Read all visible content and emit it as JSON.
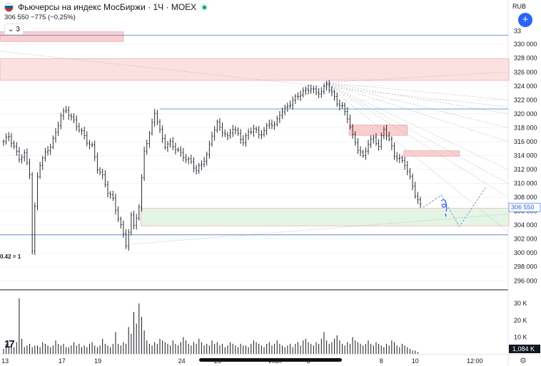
{
  "header": {
    "title": "Фьючерсы на индекс МосБиржи · 1Ч · MOEX",
    "flag_colors": [
      "#ffffff",
      "#1c57a5",
      "#d52b1e"
    ],
    "live_color": "#089981"
  },
  "quote": {
    "last": "306 550",
    "change": "−775 (−0,25%)"
  },
  "collapse": {
    "count": "3",
    "icon": "chevron-down-icon"
  },
  "toolbar": {
    "currency": "RUB",
    "add_icon": "plus-icon",
    "add_label": "+"
  },
  "fib_label": "0.42 = 1",
  "footer": {
    "settings_icon": "gear-icon",
    "logo_text": "17",
    "logo_icon": "tradingview-logo-icon"
  },
  "chart_data": {
    "type": "candlestick",
    "price_axis": {
      "ticks": [
        "330 000",
        "328 000",
        "326 000",
        "324 000",
        "322 000",
        "320 000",
        "318 000",
        "316 000",
        "314 000",
        "312 000",
        "310 000",
        "308 000",
        "306 000",
        "304 000",
        "302 000",
        "300 000",
        "298 000",
        "296 000"
      ],
      "values": [
        330000,
        328000,
        326000,
        324000,
        322000,
        320000,
        318000,
        316000,
        314000,
        312000,
        310000,
        308000,
        306000,
        304000,
        302000,
        300000,
        298000,
        296000
      ],
      "top_partial": "33",
      "range": [
        294800,
        333500
      ],
      "last_label": "306 550",
      "last_value": 306550
    },
    "volume_axis": {
      "ticks": [
        "30 K",
        "20 K",
        "10 K"
      ],
      "values": [
        30000,
        20000,
        10000
      ],
      "range": [
        0,
        36000
      ],
      "last_label": "1,084 K"
    },
    "time_axis": {
      "labels": [
        "13",
        "17",
        "19",
        "24",
        "26",
        "Июл",
        "3",
        "8",
        "10",
        "12:00"
      ],
      "positions": [
        0.6,
        22.4,
        36.2,
        68.4,
        82.2,
        104.3,
        117.0,
        145.0,
        158.0,
        180.9
      ]
    },
    "price_path": [
      [
        0,
        316000
      ],
      [
        2,
        316800
      ],
      [
        4,
        315200
      ],
      [
        6,
        313600
      ],
      [
        8,
        314200
      ],
      [
        10,
        311500
      ],
      [
        11,
        300300
      ],
      [
        12,
        306500
      ],
      [
        13,
        311000
      ],
      [
        14,
        312800
      ],
      [
        16,
        314300
      ],
      [
        18,
        315400
      ],
      [
        20,
        317200
      ],
      [
        22,
        319800
      ],
      [
        24,
        320500
      ],
      [
        26,
        319500
      ],
      [
        28,
        318300
      ],
      [
        30,
        317400
      ],
      [
        32,
        316000
      ],
      [
        34,
        315300
      ],
      [
        36,
        312200
      ],
      [
        38,
        311000
      ],
      [
        40,
        308800
      ],
      [
        42,
        307700
      ],
      [
        44,
        305000
      ],
      [
        46,
        302700
      ],
      [
        47,
        301200
      ],
      [
        48,
        303000
      ],
      [
        49,
        305200
      ],
      [
        50,
        304000
      ],
      [
        52,
        306500
      ],
      [
        53,
        310600
      ],
      [
        54,
        314800
      ],
      [
        56,
        317000
      ],
      [
        58,
        320300
      ],
      [
        60,
        317500
      ],
      [
        62,
        315400
      ],
      [
        64,
        315800
      ],
      [
        66,
        315000
      ],
      [
        68,
        314300
      ],
      [
        70,
        313500
      ],
      [
        72,
        313100
      ],
      [
        74,
        311800
      ],
      [
        76,
        312800
      ],
      [
        78,
        314000
      ],
      [
        80,
        317000
      ],
      [
        82,
        318600
      ],
      [
        84,
        317500
      ],
      [
        86,
        316600
      ],
      [
        88,
        318000
      ],
      [
        90,
        317000
      ],
      [
        92,
        316000
      ],
      [
        94,
        317300
      ],
      [
        96,
        317900
      ],
      [
        98,
        317000
      ],
      [
        100,
        317500
      ],
      [
        102,
        318700
      ],
      [
        104,
        318300
      ],
      [
        106,
        320000
      ],
      [
        108,
        320700
      ],
      [
        110,
        321500
      ],
      [
        112,
        322300
      ],
      [
        114,
        322900
      ],
      [
        116,
        323400
      ],
      [
        118,
        323700
      ],
      [
        120,
        323000
      ],
      [
        122,
        323200
      ],
      [
        124,
        324300
      ],
      [
        126,
        323000
      ],
      [
        128,
        321600
      ],
      [
        130,
        321000
      ],
      [
        132,
        319500
      ],
      [
        134,
        316800
      ],
      [
        136,
        315000
      ],
      [
        138,
        313800
      ],
      [
        140,
        315800
      ],
      [
        142,
        316500
      ],
      [
        144,
        315400
      ],
      [
        146,
        317800
      ],
      [
        148,
        316300
      ],
      [
        150,
        314000
      ],
      [
        152,
        313500
      ],
      [
        154,
        312800
      ],
      [
        156,
        310800
      ],
      [
        158,
        308400
      ],
      [
        160,
        306800
      ],
      [
        161,
        306550
      ]
    ],
    "volume_bars": [
      3,
      6,
      4,
      5,
      4,
      7,
      33,
      9,
      4,
      5,
      6,
      4,
      5,
      5,
      4,
      7,
      6,
      5,
      4,
      5,
      8,
      6,
      5,
      6,
      4,
      4,
      5,
      7,
      5,
      6,
      4,
      5,
      4,
      6,
      7,
      5,
      4,
      5,
      9,
      6,
      5,
      4,
      6,
      13,
      6,
      5,
      7,
      6,
      16,
      12,
      25,
      18,
      30,
      22,
      14,
      8,
      6,
      5,
      7,
      6,
      9,
      8,
      7,
      6,
      5,
      8,
      6,
      5,
      7,
      10,
      8,
      6,
      5,
      7,
      6,
      9,
      7,
      5,
      6,
      5,
      8,
      6,
      7,
      5,
      6,
      4,
      5,
      7,
      6,
      5,
      4,
      6,
      5,
      5,
      4,
      6,
      8,
      7,
      6,
      5,
      4,
      6,
      7,
      5,
      6,
      8,
      6,
      5,
      4,
      5,
      6,
      4,
      6,
      7,
      5,
      8,
      9,
      7,
      6,
      5,
      7,
      6,
      9,
      13,
      8,
      6,
      7,
      9,
      11,
      8,
      6,
      5,
      7,
      6,
      10,
      8,
      7,
      6,
      5,
      6,
      8,
      6,
      5,
      7,
      6,
      5,
      4,
      6,
      5,
      8,
      7,
      5,
      4,
      6,
      5,
      4,
      3,
      2,
      2,
      1.1
    ],
    "zones": [
      {
        "y1": 331800,
        "y2": 330400,
        "x1": 0,
        "x2": 46,
        "color": "#f7c5c5"
      },
      {
        "y1": 327900,
        "y2": 324800,
        "x1": 0,
        "x2": 194,
        "color": "#fbdcdc"
      },
      {
        "y1": 318400,
        "y2": 316900,
        "x1": 134,
        "x2": 155,
        "color": "#f7c5c5"
      },
      {
        "y1": 314700,
        "y2": 313900,
        "x1": 155,
        "x2": 175,
        "color": "#f7c5c5"
      },
      {
        "y1": 306400,
        "y2": 303900,
        "x1": 54,
        "x2": 194,
        "color": "#dff3e0"
      }
    ],
    "hlines": [
      {
        "y": 331300,
        "color": "#4e79c4"
      },
      {
        "y": 320700,
        "x1": 60,
        "color": "#4e79c4"
      },
      {
        "y": 302600,
        "color": "#4e79c4"
      }
    ],
    "projection": [
      [
        161,
        306550
      ],
      [
        168,
        308300
      ],
      [
        175,
        303800
      ],
      [
        185,
        309400
      ]
    ],
    "fan_origin": [
      123,
      324500
    ],
    "grid": true
  }
}
